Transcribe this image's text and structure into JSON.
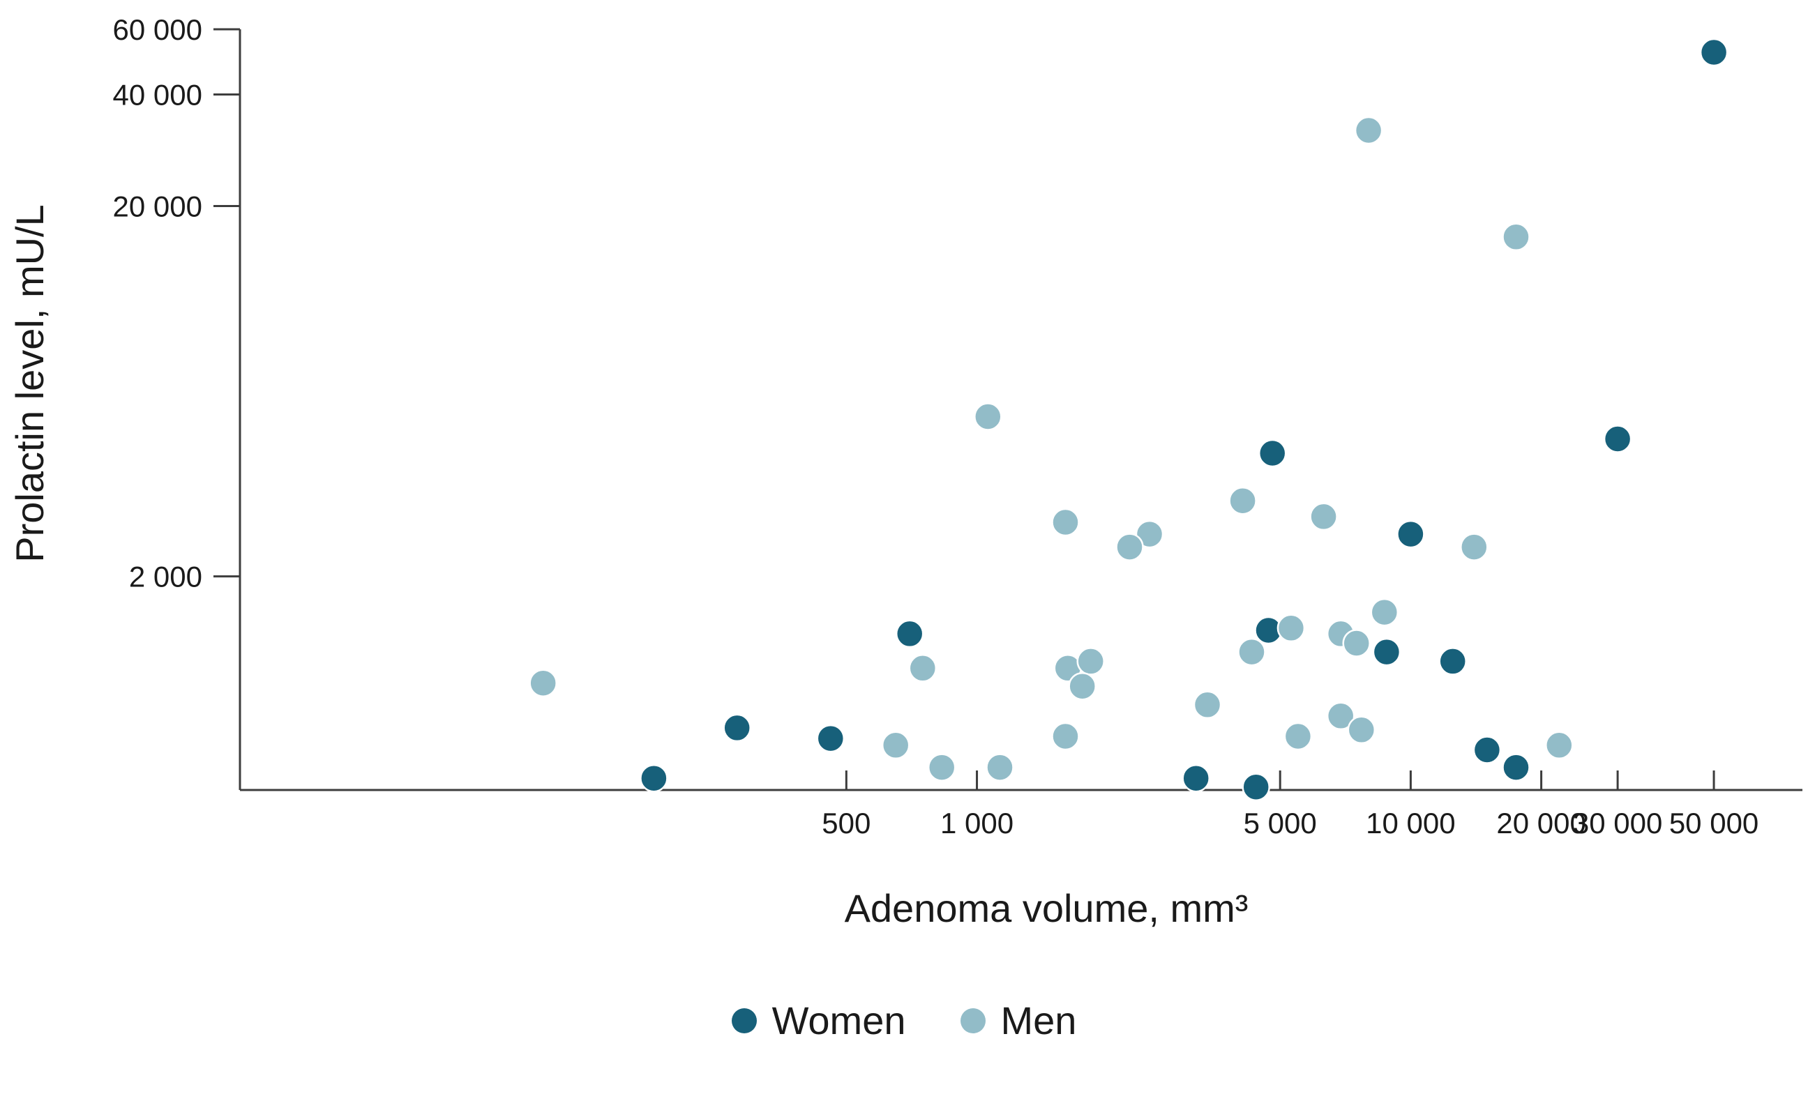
{
  "page": {
    "background": "#ffffff"
  },
  "chart_data": {
    "type": "scatter",
    "title": "",
    "xlabel": "Adenoma volume, mm³",
    "ylabel": "Prolactin level, mU/L",
    "x_scale": "log",
    "y_scale": "log",
    "x_range": [
      20,
      80000
    ],
    "y_range": [
      530,
      60000
    ],
    "grid": false,
    "legend_position": "bottom-center",
    "point_radius": 19,
    "colors": {
      "axis": "#3d3d3d",
      "text": "#1a1a1a",
      "women": "#17607a",
      "men": "#92bcc8"
    },
    "x_ticks": [
      {
        "value": 500,
        "label": "500"
      },
      {
        "value": 1000,
        "label": "1 000"
      },
      {
        "value": 5000,
        "label": "5 000"
      },
      {
        "value": 10000,
        "label": "10 000"
      },
      {
        "value": 20000,
        "label": "20 000"
      },
      {
        "value": 30000,
        "label": "30 000"
      },
      {
        "value": 50000,
        "label": "50 000"
      }
    ],
    "y_ticks": [
      {
        "value": 60000,
        "label": "60 000"
      },
      {
        "value": 40000,
        "label": "40 000"
      },
      {
        "value": 20000,
        "label": "20 000"
      },
      {
        "value": 2000,
        "label": "2 000"
      }
    ],
    "series": [
      {
        "name": "Women",
        "color": "#17607a",
        "points": [
          [
            50000,
            52000
          ],
          [
            30000,
            4700
          ],
          [
            4800,
            4300
          ],
          [
            10000,
            2600
          ],
          [
            700,
            1400
          ],
          [
            4700,
            1430
          ],
          [
            8800,
            1250
          ],
          [
            12500,
            1180
          ],
          [
            280,
            780
          ],
          [
            460,
            730
          ],
          [
            15000,
            680
          ],
          [
            17500,
            610
          ],
          [
            180,
            570
          ],
          [
            3200,
            570
          ],
          [
            4400,
            540
          ]
        ]
      },
      {
        "name": "Men",
        "color": "#92bcc8",
        "points": [
          [
            8000,
            32000
          ],
          [
            17500,
            16500
          ],
          [
            1060,
            5400
          ],
          [
            4100,
            3200
          ],
          [
            6300,
            2900
          ],
          [
            1600,
            2800
          ],
          [
            2500,
            2600
          ],
          [
            2250,
            2400
          ],
          [
            14000,
            2400
          ],
          [
            8700,
            1600
          ],
          [
            5300,
            1450
          ],
          [
            6900,
            1400
          ],
          [
            7500,
            1320
          ],
          [
            4300,
            1250
          ],
          [
            750,
            1130
          ],
          [
            1620,
            1130
          ],
          [
            1830,
            1180
          ],
          [
            1750,
            1010
          ],
          [
            100,
            1030
          ],
          [
            3400,
            900
          ],
          [
            6900,
            840
          ],
          [
            7700,
            770
          ],
          [
            1600,
            740
          ],
          [
            5500,
            740
          ],
          [
            650,
            700
          ],
          [
            22000,
            700
          ],
          [
            830,
            610
          ],
          [
            1130,
            610
          ]
        ]
      }
    ]
  }
}
